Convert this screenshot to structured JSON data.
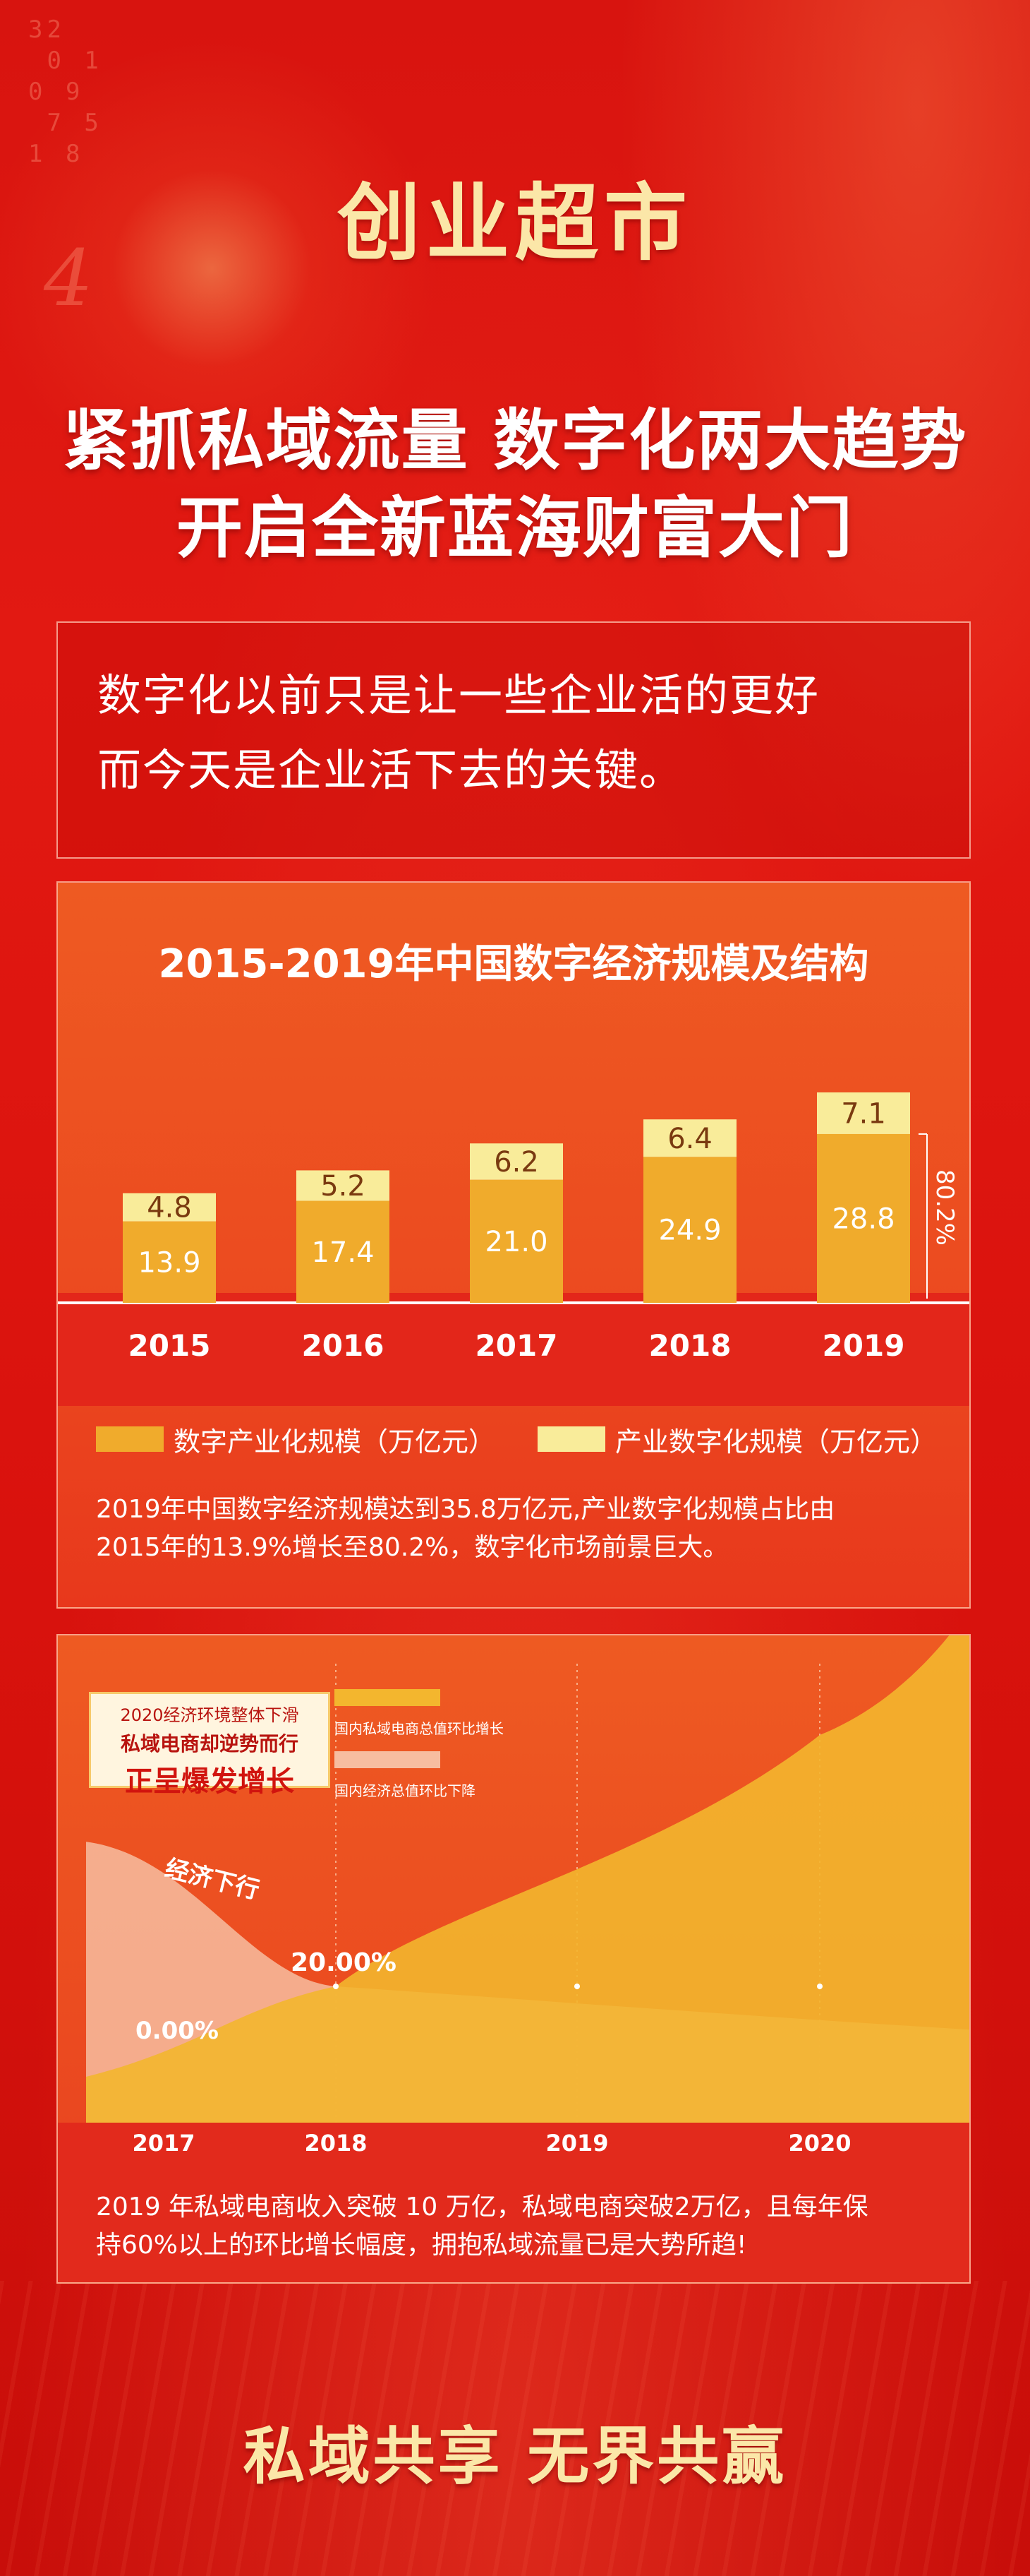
{
  "brand": "创业超市",
  "headline": {
    "line1": "紧抓私域流量 数字化两大趋势",
    "line2": "开启全新蓝海财富大门"
  },
  "intro": {
    "line1": "数字化以前只是让一些企业活的更好",
    "line2": "而今天是企业活下去的关键。"
  },
  "decor": {
    "digits": "32\n 0 1 \n0 9\n 7 5\n1 8\n ",
    "four": "4"
  },
  "colors": {
    "background": "#d8140f",
    "gold": "#fbe7a8",
    "bar_dark": "#f0ab2c",
    "bar_light": "#f9ec9a",
    "panel": "#ec4b20"
  },
  "chart_data": [
    {
      "type": "bar",
      "stacked": true,
      "title": "2015-2019年中国数字经济规模及结构",
      "categories": [
        "2015",
        "2016",
        "2017",
        "2018",
        "2019"
      ],
      "series": [
        {
          "name": "数字产业化规模（万亿元）",
          "values": [
            13.9,
            17.4,
            21.0,
            24.9,
            28.8
          ],
          "color": "#f0ab2c"
        },
        {
          "name": "产业数字化规模（万亿元）",
          "values": [
            4.8,
            5.2,
            6.2,
            6.4,
            7.1
          ],
          "color": "#f9ec9a"
        }
      ],
      "value_labels": {
        "bottom": [
          "13.9",
          "17.4",
          "21.0",
          "24.9",
          "28.8"
        ],
        "top": [
          "4.8",
          "5.2",
          "6.2",
          "6.4",
          "7.1"
        ]
      },
      "annotation": "80.2%",
      "legend": "bottom",
      "note": {
        "line1": "2019年中国数字经济规模达到35.8万亿元,产业数字化规模占比由",
        "line2": "2015年的13.9%增长至80.2%，数字化市场前景巨大。"
      }
    },
    {
      "type": "area",
      "categories": [
        "2017",
        "2018",
        "2019",
        "2020"
      ],
      "series": [
        {
          "name": "国内私域电商总值环比增长",
          "values": [
            0,
            20,
            45,
            85
          ],
          "color": "#f3b62e"
        },
        {
          "name": "国内经济总值环比下降",
          "values": [
            52,
            20,
            18,
            12
          ],
          "color": "#f7bda0"
        }
      ],
      "data_labels": [
        "0.00%",
        "20.00%"
      ],
      "annotation": "经济下行",
      "callout": {
        "line1": "2020经济环境整体下滑",
        "line2": "私域电商却逆势而行",
        "line3": "正呈爆发增长"
      },
      "note": {
        "line1": "2019 年私域电商收入突破 10 万亿，私域电商突破2万亿，且每年保",
        "line2": "持60%以上的环比增长幅度，拥抱私域流量已是大势所趋!"
      }
    }
  ],
  "slogan": "私域共享  无界共赢"
}
